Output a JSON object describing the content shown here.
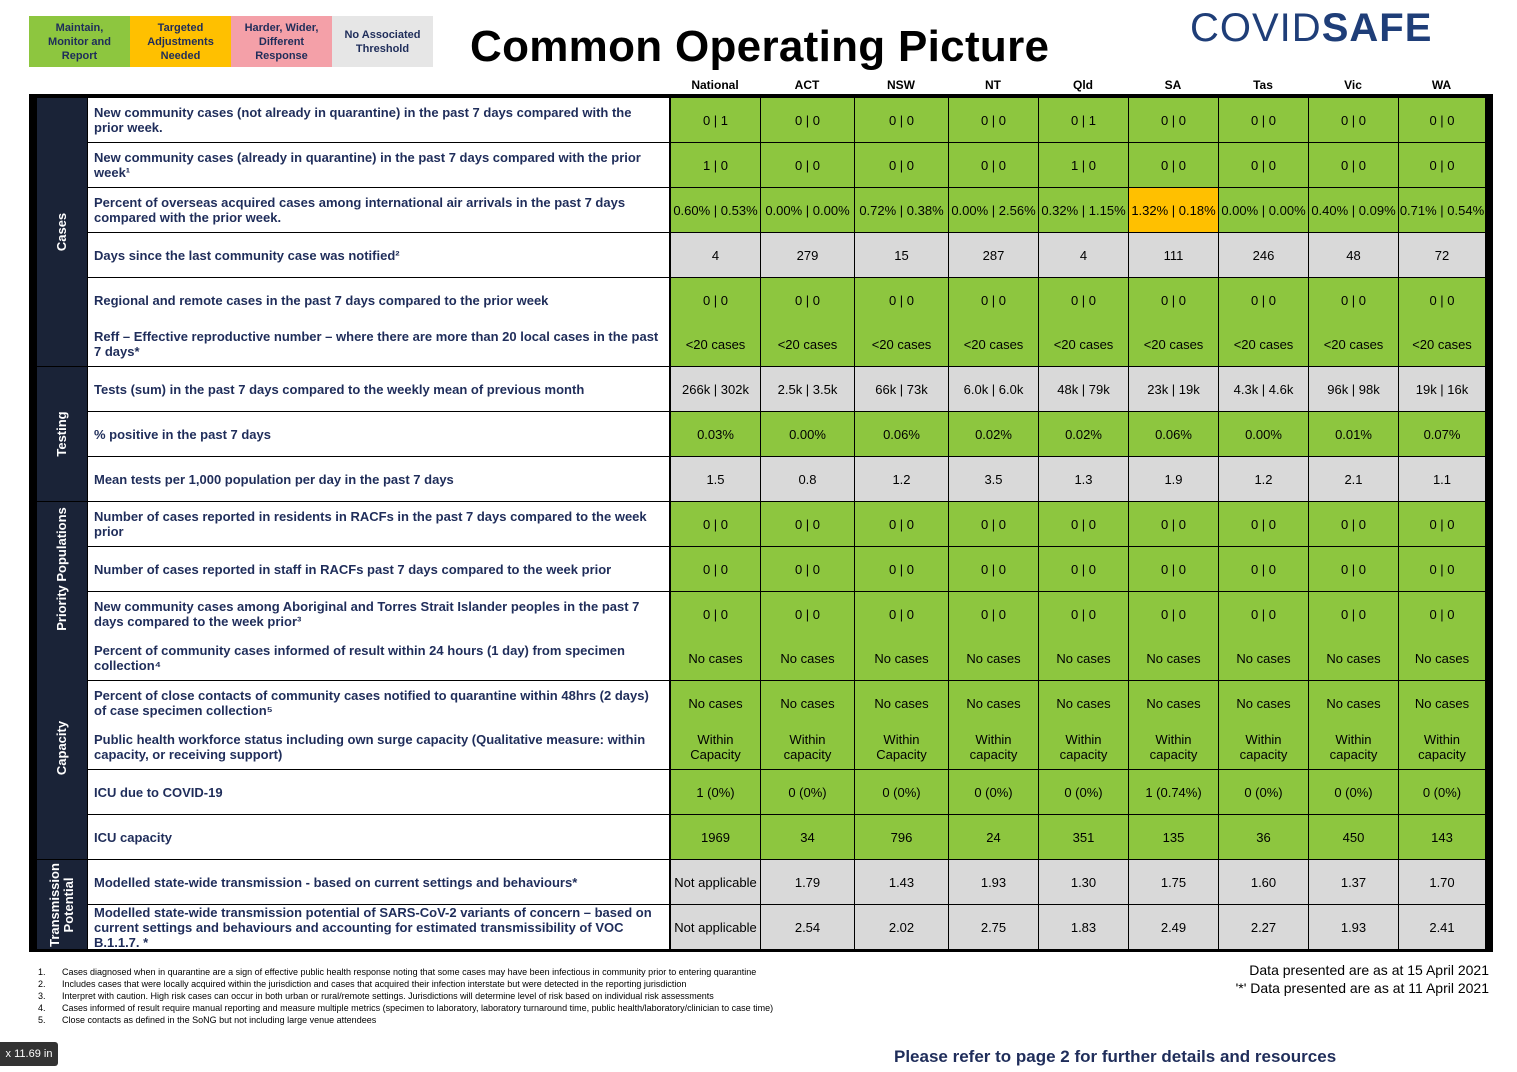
{
  "legend": [
    {
      "label": "Maintain,\nMonitor and\nReport",
      "color": "#8dc63f"
    },
    {
      "label": "Targeted\nAdjustments\nNeeded",
      "color": "#ffc000"
    },
    {
      "label": "Harder, Wider,\nDifferent\nResponse",
      "color": "#f4a0a8"
    },
    {
      "label": "No Associated\nThreshold",
      "color": "#e6e6e6"
    }
  ],
  "title": "Common Operating Picture",
  "brand": {
    "part1": "COVID",
    "part2": "SAFE"
  },
  "columns": [
    "National",
    "ACT",
    "NSW",
    "NT",
    "Qld",
    "SA",
    "Tas",
    "Vic",
    "WA"
  ],
  "sections": [
    "Cases",
    "Testing",
    "Priority Populations",
    "Capacity",
    "Transmission\nPotential"
  ],
  "rows": [
    {
      "label": "New community cases (not already in quarantine) in the past 7 days compared with the prior week.",
      "values": [
        "0 | 1",
        "0 | 0",
        "0 | 0",
        "0 | 0",
        "0 | 1",
        "0 | 0",
        "0 | 0",
        "0 | 0",
        "0 | 0"
      ]
    },
    {
      "label": "New community cases (already in quarantine) in the past 7 days compared with the prior week¹",
      "values": [
        "1 | 0",
        "0 | 0",
        "0 | 0",
        "0 | 0",
        "1 | 0",
        "0 | 0",
        "0 | 0",
        "0 | 0",
        "0 | 0"
      ]
    },
    {
      "label": "Percent of overseas acquired cases among international air arrivals in the past 7 days compared with the prior week.",
      "values": [
        "0.60% | 0.53%",
        "0.00% | 0.00%",
        "0.72% | 0.38%",
        "0.00% | 2.56%",
        "0.32% | 1.15%",
        "1.32% | 0.18%",
        "0.00% | 0.00%",
        "0.40% | 0.09%",
        "0.71% | 0.54%"
      ]
    },
    {
      "label": "Days since the last community case was notified²",
      "values": [
        "4",
        "279",
        "15",
        "287",
        "4",
        "111",
        "246",
        "48",
        "72"
      ]
    },
    {
      "label": "Regional and remote cases in the past 7 days compared to the prior week",
      "values": [
        "0 | 0",
        "0 | 0",
        "0 | 0",
        "0 | 0",
        "0 | 0",
        "0 | 0",
        "0 | 0",
        "0 | 0",
        "0 | 0"
      ]
    },
    {
      "label": "Reff – Effective reproductive number – where there are more than 20 local cases in the past 7 days*",
      "values": [
        "<20 cases",
        "<20 cases",
        "<20 cases",
        "<20 cases",
        "<20 cases",
        "<20 cases",
        "<20 cases",
        "<20 cases",
        "<20 cases"
      ]
    },
    {
      "label": "Tests (sum) in the past 7 days compared to the weekly mean of previous month",
      "values": [
        "266k | 302k",
        "2.5k | 3.5k",
        "66k | 73k",
        "6.0k | 6.0k",
        "48k | 79k",
        "23k | 19k",
        "4.3k | 4.6k",
        "96k | 98k",
        "19k | 16k"
      ]
    },
    {
      "label": "% positive in the past 7 days",
      "values": [
        "0.03%",
        "0.00%",
        "0.06%",
        "0.02%",
        "0.02%",
        "0.06%",
        "0.00%",
        "0.01%",
        "0.07%"
      ]
    },
    {
      "label": "Mean tests per 1,000 population per day in the past 7 days",
      "values": [
        "1.5",
        "0.8",
        "1.2",
        "3.5",
        "1.3",
        "1.9",
        "1.2",
        "2.1",
        "1.1"
      ]
    },
    {
      "label": "Number of cases reported in residents in RACFs in the past 7 days compared to the week prior",
      "values": [
        "0 | 0",
        "0 | 0",
        "0 | 0",
        "0 | 0",
        "0 | 0",
        "0 | 0",
        "0 | 0",
        "0 | 0",
        "0 | 0"
      ]
    },
    {
      "label": "Number of cases reported in staff in RACFs past 7 days compared to the week prior",
      "values": [
        "0 | 0",
        "0 | 0",
        "0 | 0",
        "0 | 0",
        "0 | 0",
        "0 | 0",
        "0 | 0",
        "0 | 0",
        "0 | 0"
      ]
    },
    {
      "label": "New community cases among Aboriginal and Torres Strait Islander peoples in the past 7 days compared to the week prior³",
      "values": [
        "0 | 0",
        "0 | 0",
        "0 | 0",
        "0 | 0",
        "0 | 0",
        "0 | 0",
        "0 | 0",
        "0 | 0",
        "0 | 0"
      ]
    },
    {
      "label": "Percent of community cases informed of result within 24 hours (1 day) from specimen collection⁴",
      "values": [
        "No cases",
        "No cases",
        "No cases",
        "No cases",
        "No cases",
        "No cases",
        "No cases",
        "No cases",
        "No cases"
      ]
    },
    {
      "label": "Percent of close contacts of community cases notified to quarantine within 48hrs (2 days) of case specimen collection⁵",
      "values": [
        "No cases",
        "No cases",
        "No cases",
        "No cases",
        "No cases",
        "No cases",
        "No cases",
        "No cases",
        "No cases"
      ]
    },
    {
      "label": "Public health workforce status including own surge capacity (Qualitative measure: within capacity, or receiving support)",
      "values": [
        "Within\nCapacity",
        "Within\ncapacity",
        "Within\nCapacity",
        "Within\ncapacity",
        "Within\ncapacity",
        "Within\ncapacity",
        "Within\ncapacity",
        "Within\ncapacity",
        "Within\ncapacity"
      ]
    },
    {
      "label": "ICU due to COVID-19",
      "values": [
        "1 (0%)",
        "0 (0%)",
        "0 (0%)",
        "0 (0%)",
        "0 (0%)",
        "1 (0.74%)",
        "0 (0%)",
        "0 (0%)",
        "0 (0%)"
      ]
    },
    {
      "label": "ICU capacity",
      "values": [
        "1969",
        "34",
        "796",
        "24",
        "351",
        "135",
        "36",
        "450",
        "143"
      ]
    },
    {
      "label": "Modelled state-wide transmission - based on current settings and behaviours*",
      "values": [
        "Not applicable",
        "1.79",
        "1.43",
        "1.93",
        "1.30",
        "1.75",
        "1.60",
        "1.37",
        "1.70"
      ]
    },
    {
      "label": "Modelled state-wide transmission potential of SARS-CoV-2 variants of concern – based on current settings and behaviours and accounting for estimated transmissibility of VOC B.1.1.7. *",
      "values": [
        "Not applicable",
        "2.54",
        "2.02",
        "2.75",
        "1.83",
        "2.49",
        "2.27",
        "1.93",
        "2.41"
      ]
    }
  ],
  "footnotes": [
    {
      "n": "1.",
      "text": "Cases diagnosed when in quarantine are a sign of effective public health response noting that some cases may have been infectious in community prior to entering quarantine"
    },
    {
      "n": "2.",
      "text": "Includes cases that were locally acquired within the jurisdiction and cases that acquired their infection interstate but were detected in the reporting jurisdiction"
    },
    {
      "n": "3.",
      "text": "Interpret with caution. High risk cases can occur in both urban or rural/remote settings. Jurisdictions will determine level of risk based on individual risk assessments"
    },
    {
      "n": "4.",
      "text": "Cases informed of result require manual reporting and measure multiple metrics (specimen to laboratory, laboratory turnaround time, public health/laboratory/clinician to case time)"
    },
    {
      "n": "5.",
      "text": "Close contacts as defined in the SoNG but not including large venue attendees"
    }
  ],
  "dates": {
    "line1": "Data presented are as at 15 April 2021",
    "line2": "'*' Data presented are as at 11 April 2021"
  },
  "refer": "Please refer to page 2 for further details and resources",
  "dim_badge": "x 11.69 in"
}
